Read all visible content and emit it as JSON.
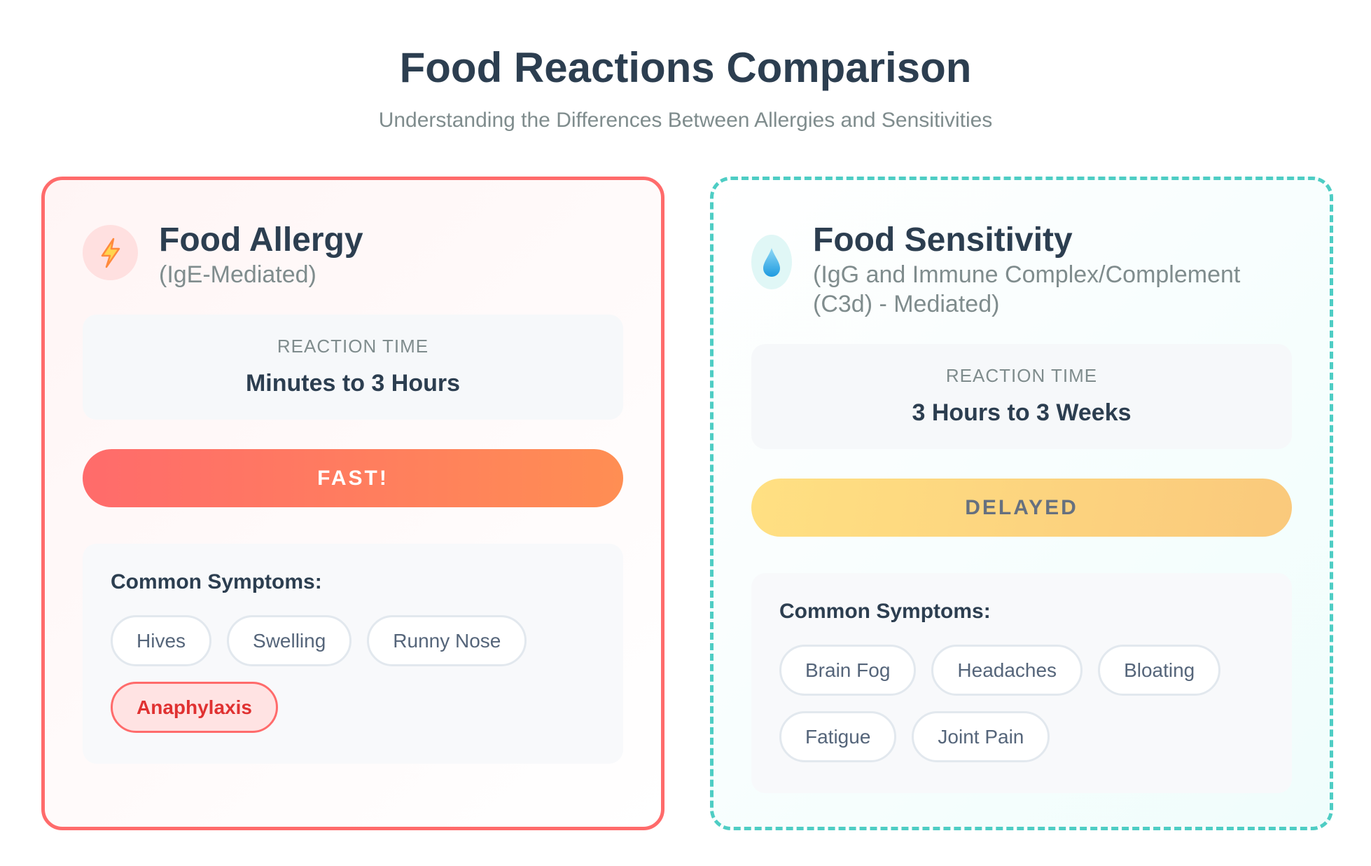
{
  "header": {
    "title": "Food Reactions Comparison",
    "subtitle": "Understanding the Differences Between Allergies and Sensitivities"
  },
  "cards": [
    {
      "icon": "lightning-icon",
      "title": "Food Allergy",
      "subtitle": "(IgE-Mediated)",
      "reaction_label": "REACTION TIME",
      "reaction_value": "Minutes to 3 Hours",
      "speed": "FAST!",
      "symptoms_title": "Common Symptoms:",
      "symptoms": [
        "Hives",
        "Swelling",
        "Runny Nose",
        "Anaphylaxis"
      ],
      "accent": "#ff6b6b"
    },
    {
      "icon": "droplet-icon",
      "title": "Food Sensitivity",
      "subtitle": "(IgG and Immune Complex/Complement (C3d) - Mediated)",
      "reaction_label": "REACTION TIME",
      "reaction_value": "3 Hours to 3 Weeks",
      "speed": "DELAYED",
      "symptoms_title": "Common Symptoms:",
      "symptoms": [
        "Brain Fog",
        "Headaches",
        "Bloating",
        "Fatigue",
        "Joint Pain"
      ],
      "accent": "#4ecdc4"
    }
  ]
}
